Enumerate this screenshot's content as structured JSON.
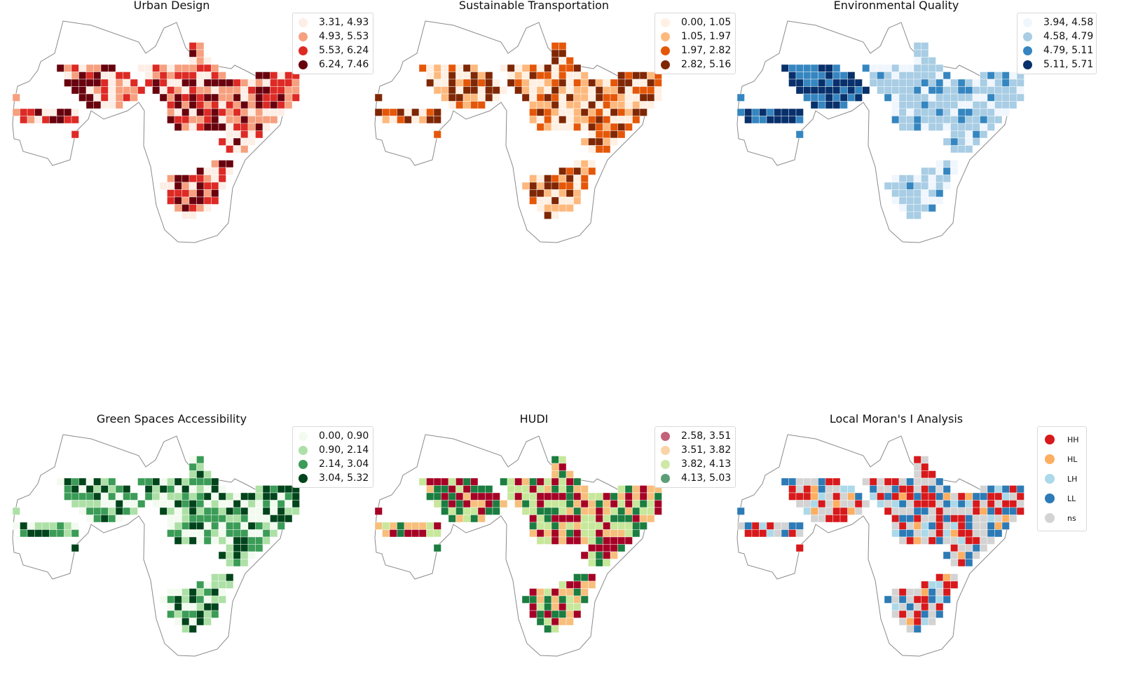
{
  "figure": {
    "panels": [
      {
        "id": "urban-design",
        "title": "Urban Design",
        "palette": [
          "#fdeee6",
          "#f6a07f",
          "#dd2a25",
          "#68000d"
        ],
        "legend": [
          {
            "label": "3.31, 4.93",
            "color": "#fdeee6"
          },
          {
            "label": "4.93, 5.53",
            "color": "#f6a07f"
          },
          {
            "label": "5.53, 6.24",
            "color": "#dd2a25"
          },
          {
            "label": "6.24, 7.46",
            "color": "#68000d"
          }
        ]
      },
      {
        "id": "sustainable-transportation",
        "title": "Sustainable Transportation",
        "palette": [
          "#fff0e3",
          "#fdb97d",
          "#e55708",
          "#7f2704"
        ],
        "legend": [
          {
            "label": "0.00, 1.05",
            "color": "#fff0e3"
          },
          {
            "label": "1.05, 1.97",
            "color": "#fdb97d"
          },
          {
            "label": "1.97, 2.82",
            "color": "#e55708"
          },
          {
            "label": "2.82, 5.16",
            "color": "#7f2704"
          }
        ]
      },
      {
        "id": "environmental-quality",
        "title": "Environmental Quality",
        "palette": [
          "#f0f6fd",
          "#a8cde4",
          "#3586c0",
          "#08306b"
        ],
        "legend": [
          {
            "label": "3.94, 4.58",
            "color": "#f0f6fd"
          },
          {
            "label": "4.58, 4.79",
            "color": "#a8cde4"
          },
          {
            "label": "4.79, 5.11",
            "color": "#3586c0"
          },
          {
            "label": "5.11, 5.71",
            "color": "#08306b"
          }
        ]
      },
      {
        "id": "green-spaces-accessibility",
        "title": "Green Spaces Accessibility",
        "palette": [
          "#f3fbf0",
          "#ade0a6",
          "#3b9c57",
          "#00441b"
        ],
        "legend": [
          {
            "label": "0.00, 0.90",
            "color": "#f3fbf0"
          },
          {
            "label": "0.90, 2.14",
            "color": "#ade0a6"
          },
          {
            "label": "2.14, 3.04",
            "color": "#3b9c57"
          },
          {
            "label": "3.04, 5.32",
            "color": "#00441b"
          }
        ]
      },
      {
        "id": "hudi",
        "title": "HUDI",
        "palette": [
          "#a50026",
          "#f7bf7c",
          "#c7e79a",
          "#1b7d40"
        ],
        "legend": [
          {
            "label": "2.58, 3.51",
            "color": "#c2637a"
          },
          {
            "label": "3.51, 3.82",
            "color": "#f9d4a8"
          },
          {
            "label": "3.82, 4.13",
            "color": "#cfe8a8"
          },
          {
            "label": "4.13, 5.03",
            "color": "#5c9e76"
          }
        ]
      },
      {
        "id": "local-morans-i-analysis",
        "title": "Local Moran's I Analysis",
        "palette": [
          "#d7191c",
          "#d3d3d3",
          "#2c7bb6",
          "#abd9e9",
          "#fdae61"
        ],
        "legend": [
          {
            "label": "HH",
            "color": "#d7191c"
          },
          {
            "label": "HL",
            "color": "#fdae61"
          },
          {
            "label": "LH",
            "color": "#abd9e9"
          },
          {
            "label": "LL",
            "color": "#2c7bb6"
          },
          {
            "label": "ns",
            "color": "#d3d3d3"
          }
        ]
      }
    ]
  }
}
